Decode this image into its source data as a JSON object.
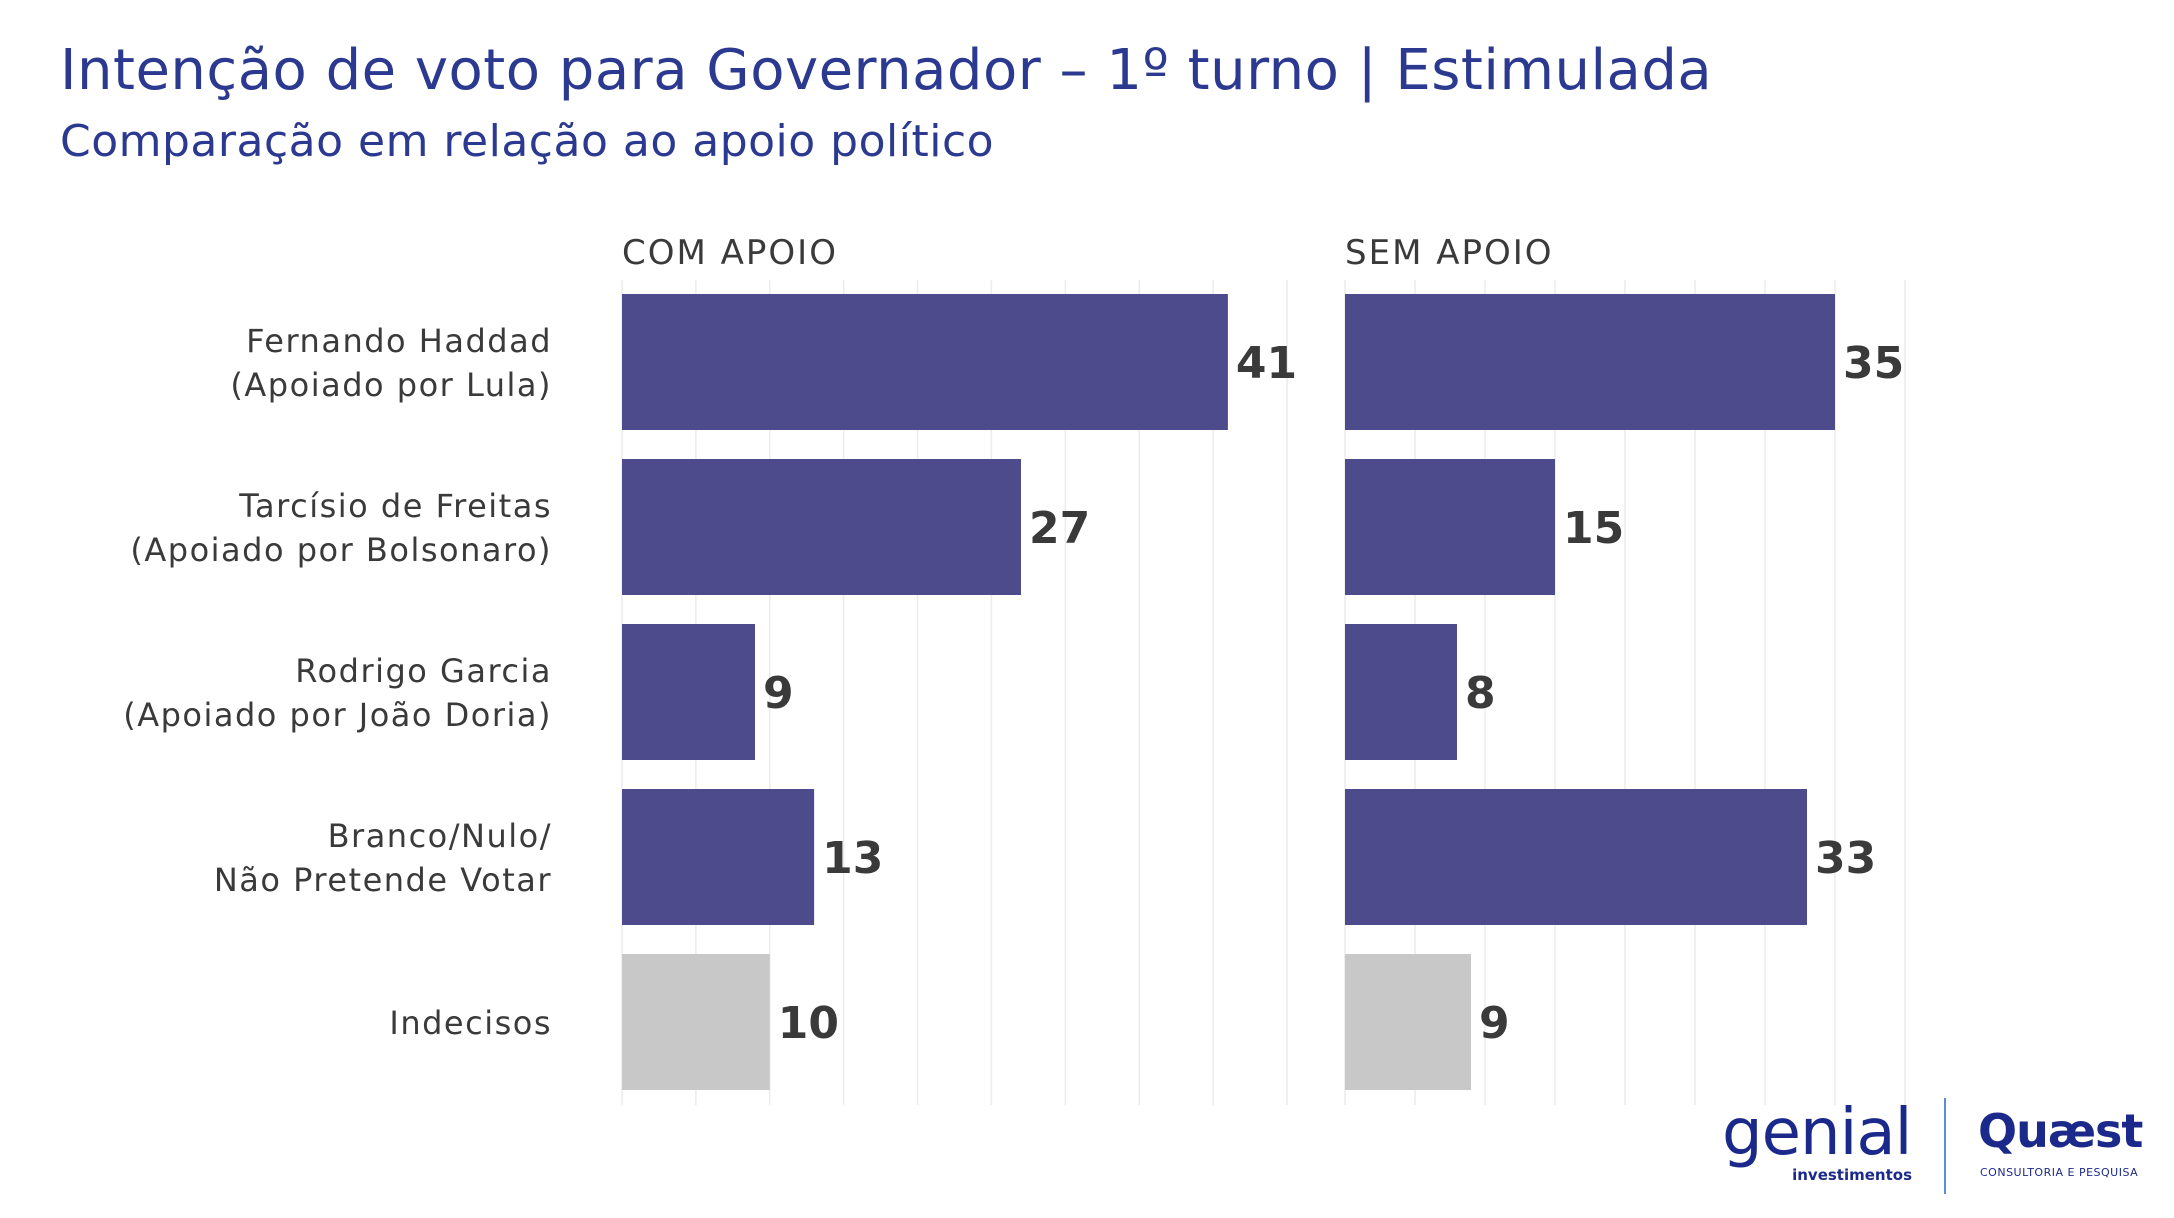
{
  "header": {
    "title": "Intenção de voto para Governador – 1º turno | Estimulada",
    "subtitle": "Comparação em relação ao apoio político"
  },
  "colors": {
    "title": "#2b3990",
    "bar_primary": "#4d4b8c",
    "bar_secondary": "#c8c8c8",
    "text": "#3a3a3a",
    "grid": "#ececec"
  },
  "chart_data": {
    "type": "bar",
    "orientation": "horizontal",
    "categories": [
      [
        "Fernando Haddad",
        "(Apoiado por Lula)"
      ],
      [
        "Tarcísio de Freitas",
        "(Apoiado por Bolsonaro)"
      ],
      [
        "Rodrigo Garcia",
        "(Apoiado por João Doria)"
      ],
      [
        "Branco/Nulo/",
        "Não Pretende Votar"
      ],
      [
        "Indecisos"
      ]
    ],
    "series": [
      {
        "name": "COM APOIO",
        "values": [
          41,
          27,
          9,
          13,
          10
        ],
        "bar_colors": [
          "#4d4b8c",
          "#4d4b8c",
          "#4d4b8c",
          "#4d4b8c",
          "#c8c8c8"
        ],
        "xlim": [
          0,
          45
        ]
      },
      {
        "name": "SEM APOIO",
        "values": [
          35,
          15,
          8,
          33,
          9
        ],
        "bar_colors": [
          "#4d4b8c",
          "#4d4b8c",
          "#4d4b8c",
          "#4d4b8c",
          "#c8c8c8"
        ],
        "xlim": [
          0,
          40
        ]
      }
    ],
    "grid": true,
    "legend": "none"
  },
  "footer": {
    "logo_genial": "genial",
    "logo_genial_sub": "investimentos",
    "logo_quaest": "Quæst",
    "logo_quaest_sub": "CONSULTORIA E PESQUISA"
  }
}
